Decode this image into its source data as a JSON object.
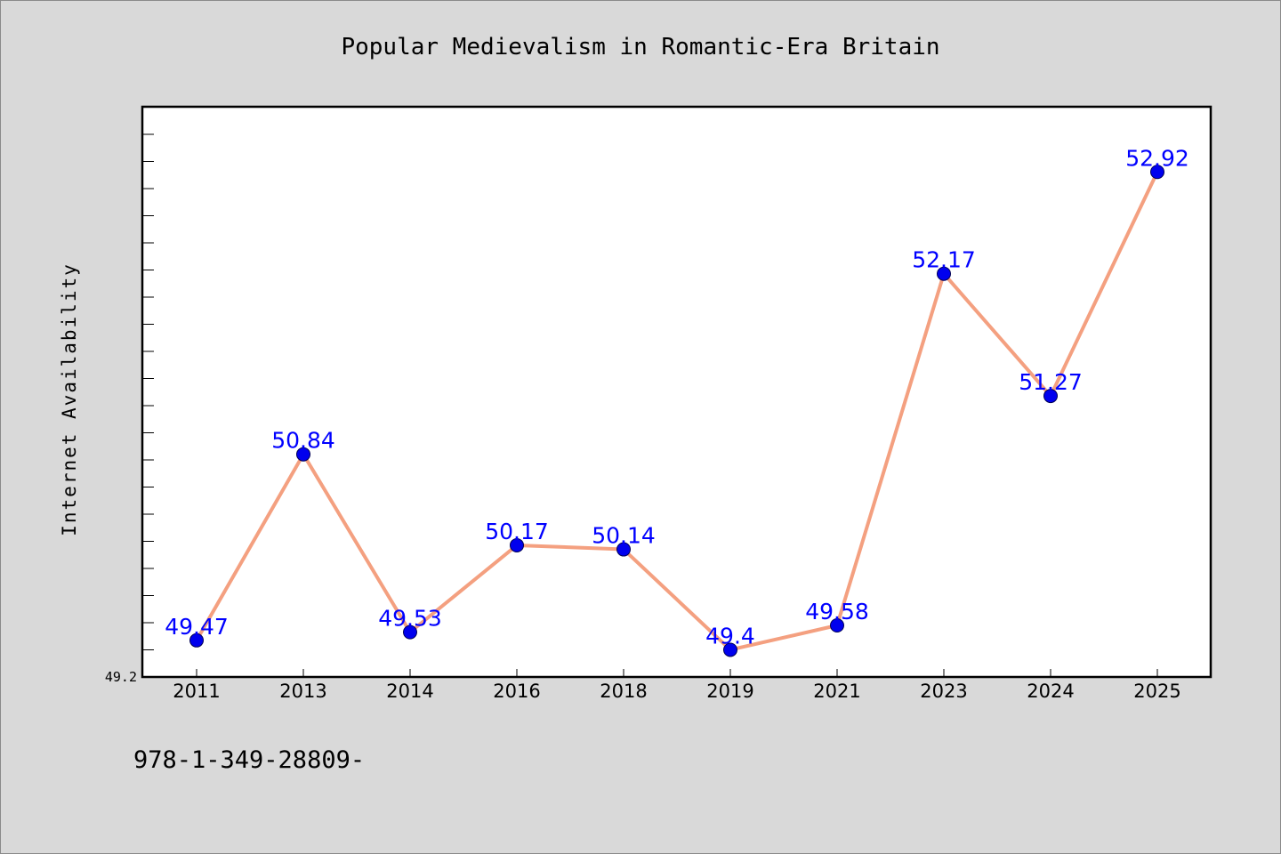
{
  "chart_data": {
    "type": "line",
    "title": "Popular Medievalism in Romantic-Era Britain",
    "xlabel": "",
    "ylabel": "Internet Availability",
    "categories": [
      "2011",
      "2013",
      "2014",
      "2016",
      "2018",
      "2019",
      "2021",
      "2023",
      "2024",
      "2025"
    ],
    "series": [
      {
        "values": [
          49.47,
          50.84,
          49.53,
          50.17,
          50.14,
          49.4,
          49.58,
          52.17,
          51.27,
          52.92
        ]
      }
    ],
    "data_labels": [
      "49.47",
      "50.84",
      "49.53",
      "50.17",
      "50.14",
      "49.4",
      "49.58",
      "52.17",
      "51.27",
      "52.92"
    ],
    "ytick_labels": [
      "49.2"
    ],
    "ylim": [
      49.2,
      53.4
    ],
    "grid": false,
    "legend": "none",
    "footnote": "978-1-349-28809-",
    "colors": {
      "background": "#d9d9d9",
      "plot_background": "#ffffff",
      "line": "#f4a080",
      "marker": "#0000ee",
      "label": "#0000ff"
    }
  }
}
